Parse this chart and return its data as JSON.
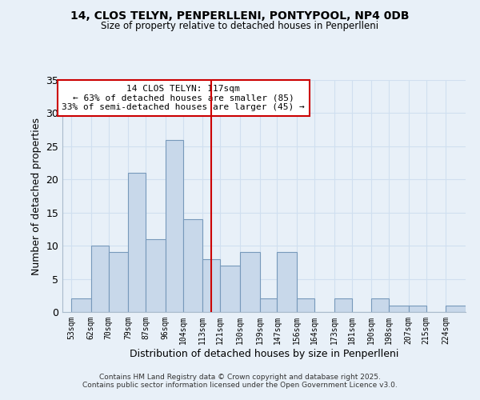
{
  "title": "14, CLOS TELYN, PENPERLLENI, PONTYPOOL, NP4 0DB",
  "subtitle": "Size of property relative to detached houses in Penperlleni",
  "xlabel": "Distribution of detached houses by size in Penperlleni",
  "ylabel": "Number of detached properties",
  "bin_edges": [
    53,
    62,
    70,
    79,
    87,
    96,
    104,
    113,
    121,
    130,
    139,
    147,
    156,
    164,
    173,
    181,
    190,
    198,
    207,
    215,
    224,
    233
  ],
  "bar_heights": [
    2,
    10,
    9,
    21,
    11,
    26,
    14,
    8,
    7,
    9,
    2,
    9,
    2,
    0,
    2,
    0,
    2,
    1,
    1,
    0,
    1
  ],
  "bar_color": "#c8d8ea",
  "bar_edge_color": "#7799bb",
  "grid_color": "#d0dff0",
  "bg_color": "#e8f0f8",
  "vline_x": 117,
  "vline_color": "#cc0000",
  "annotation_title": "14 CLOS TELYN: 117sqm",
  "annotation_line1": "← 63% of detached houses are smaller (85)",
  "annotation_line2": "33% of semi-detached houses are larger (45) →",
  "annotation_box_color": "#ffffff",
  "annotation_box_edge": "#cc0000",
  "ylim": [
    0,
    35
  ],
  "yticks": [
    0,
    5,
    10,
    15,
    20,
    25,
    30,
    35
  ],
  "tick_labels": [
    "53sqm",
    "62sqm",
    "70sqm",
    "79sqm",
    "87sqm",
    "96sqm",
    "104sqm",
    "113sqm",
    "121sqm",
    "130sqm",
    "139sqm",
    "147sqm",
    "156sqm",
    "164sqm",
    "173sqm",
    "181sqm",
    "190sqm",
    "198sqm",
    "207sqm",
    "215sqm",
    "224sqm"
  ],
  "tick_positions": [
    53,
    62,
    70,
    79,
    87,
    96,
    104,
    113,
    121,
    130,
    139,
    147,
    156,
    164,
    173,
    181,
    190,
    198,
    207,
    215,
    224
  ],
  "footer1": "Contains HM Land Registry data © Crown copyright and database right 2025.",
  "footer2": "Contains public sector information licensed under the Open Government Licence v3.0."
}
